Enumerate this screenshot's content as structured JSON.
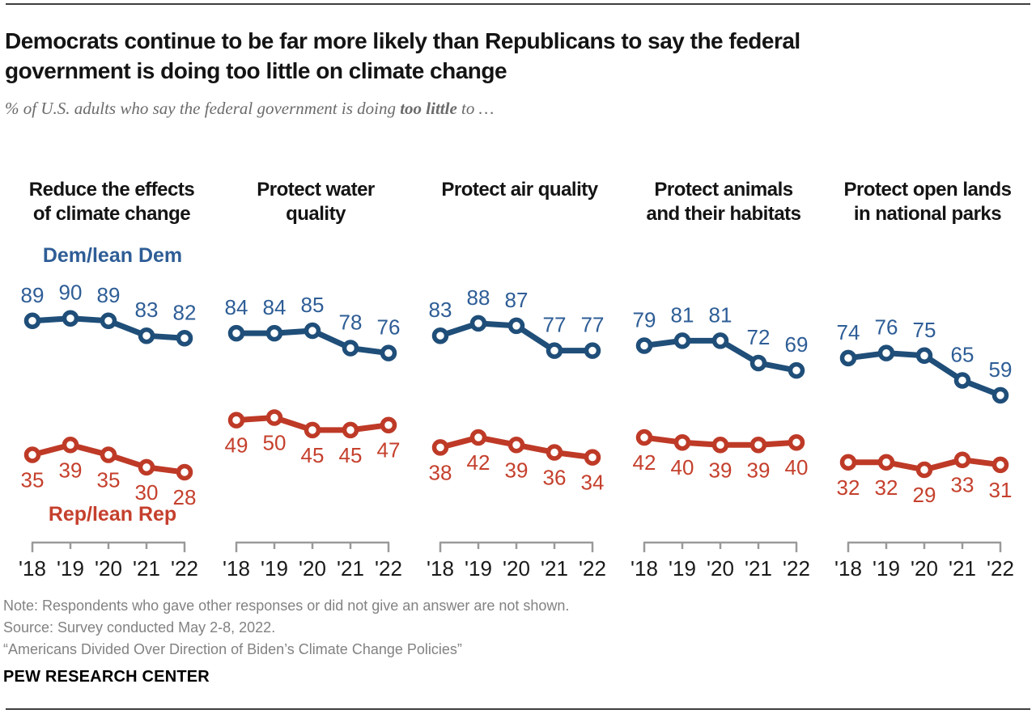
{
  "header": {
    "title_line1": "Democrats continue to be far more likely than Republicans to say the federal",
    "title_line2": "government is doing too little on climate change",
    "subtitle_prefix": "% of U.S. adults who say the federal government is doing ",
    "subtitle_bold": "too little",
    "subtitle_suffix": " to …"
  },
  "chart_data": {
    "type": "line",
    "x": [
      "'18",
      "'19",
      "'20",
      "'21",
      "'22"
    ],
    "ylim": [
      0,
      100
    ],
    "grid": false,
    "legend": {
      "dem": "Dem/lean Dem",
      "rep": "Rep/lean Rep"
    },
    "colors": {
      "dem_line": "#1F4E79",
      "dem_label": "#2E5D96",
      "rep_line": "#BE3A27",
      "rep_label": "#C5402D",
      "axis": "#9a9a9a"
    },
    "panels": [
      {
        "t1": "Reduce the effects",
        "t2": "of climate change",
        "series": [
          {
            "name": "Dem/lean Dem",
            "values": [
              89,
              90,
              89,
              83,
              82
            ]
          },
          {
            "name": "Rep/lean Rep",
            "values": [
              35,
              39,
              35,
              30,
              28
            ]
          }
        ]
      },
      {
        "t1": "Protect water",
        "t2": "quality",
        "series": [
          {
            "name": "Dem/lean Dem",
            "values": [
              84,
              84,
              85,
              78,
              76
            ]
          },
          {
            "name": "Rep/lean Rep",
            "values": [
              49,
              50,
              45,
              45,
              47
            ]
          }
        ]
      },
      {
        "t1": "Protect air quality",
        "t2": "",
        "series": [
          {
            "name": "Dem/lean Dem",
            "values": [
              83,
              88,
              87,
              77,
              77
            ]
          },
          {
            "name": "Rep/lean Rep",
            "values": [
              38,
              42,
              39,
              36,
              34
            ]
          }
        ]
      },
      {
        "t1": "Protect animals",
        "t2": "and their habitats",
        "series": [
          {
            "name": "Dem/lean Dem",
            "values": [
              79,
              81,
              81,
              72,
              69
            ]
          },
          {
            "name": "Rep/lean Rep",
            "values": [
              42,
              40,
              39,
              39,
              40
            ]
          }
        ]
      },
      {
        "t1": "Protect open lands",
        "t2": "in national parks",
        "series": [
          {
            "name": "Dem/lean Dem",
            "values": [
              74,
              76,
              75,
              65,
              59
            ]
          },
          {
            "name": "Rep/lean Rep",
            "values": [
              32,
              32,
              29,
              33,
              31
            ]
          }
        ]
      }
    ]
  },
  "footer": {
    "note": "Note: Respondents who gave other responses or did not give an answer are not shown.",
    "source": "Source: Survey conducted May 2-8, 2022.",
    "quote": "“Americans Divided Over Direction of Biden’s Climate Change Policies”",
    "brand": "PEW RESEARCH CENTER"
  }
}
